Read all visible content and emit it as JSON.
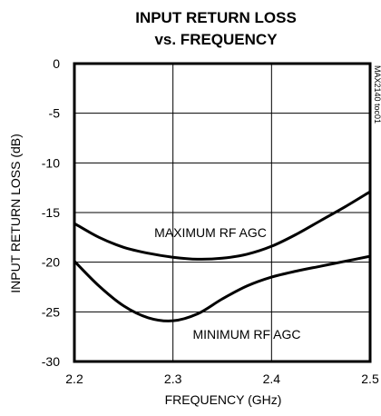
{
  "chart_data": {
    "type": "line",
    "title_line1": "INPUT RETURN LOSS",
    "title_line2": "vs. FREQUENCY",
    "xlabel": "FREQUENCY (GHz)",
    "ylabel": "INPUT RETURN LOSS (dB)",
    "xlim": [
      2.2,
      2.5
    ],
    "ylim": [
      -30,
      0
    ],
    "x_ticks": [
      "2.2",
      "2.3",
      "2.4",
      "2.5"
    ],
    "y_ticks": [
      "0",
      "-5",
      "-10",
      "-15",
      "-20",
      "-25",
      "-30"
    ],
    "grid": true,
    "figure_code": "MAX2140 toc01",
    "series": [
      {
        "name": "MAXIMUM RF AGC",
        "x": [
          2.2,
          2.225,
          2.25,
          2.275,
          2.3,
          2.325,
          2.35,
          2.375,
          2.4,
          2.425,
          2.45,
          2.475,
          2.5
        ],
        "y": [
          -16.1,
          -17.5,
          -18.5,
          -19.1,
          -19.5,
          -19.7,
          -19.6,
          -19.2,
          -18.4,
          -17.2,
          -15.8,
          -14.4,
          -12.9
        ]
      },
      {
        "name": "MINIMUM RF AGC",
        "x": [
          2.2,
          2.225,
          2.25,
          2.275,
          2.3,
          2.325,
          2.35,
          2.375,
          2.4,
          2.425,
          2.45,
          2.475,
          2.5
        ],
        "y": [
          -19.9,
          -22.4,
          -24.4,
          -25.6,
          -25.9,
          -25.2,
          -23.7,
          -22.4,
          -21.5,
          -20.9,
          -20.4,
          -19.9,
          -19.4
        ]
      }
    ],
    "annotations": [
      {
        "text": "MAXIMUM RF AGC",
        "series": 0
      },
      {
        "text": "MINIMUM RF AGC",
        "series": 1
      }
    ]
  }
}
